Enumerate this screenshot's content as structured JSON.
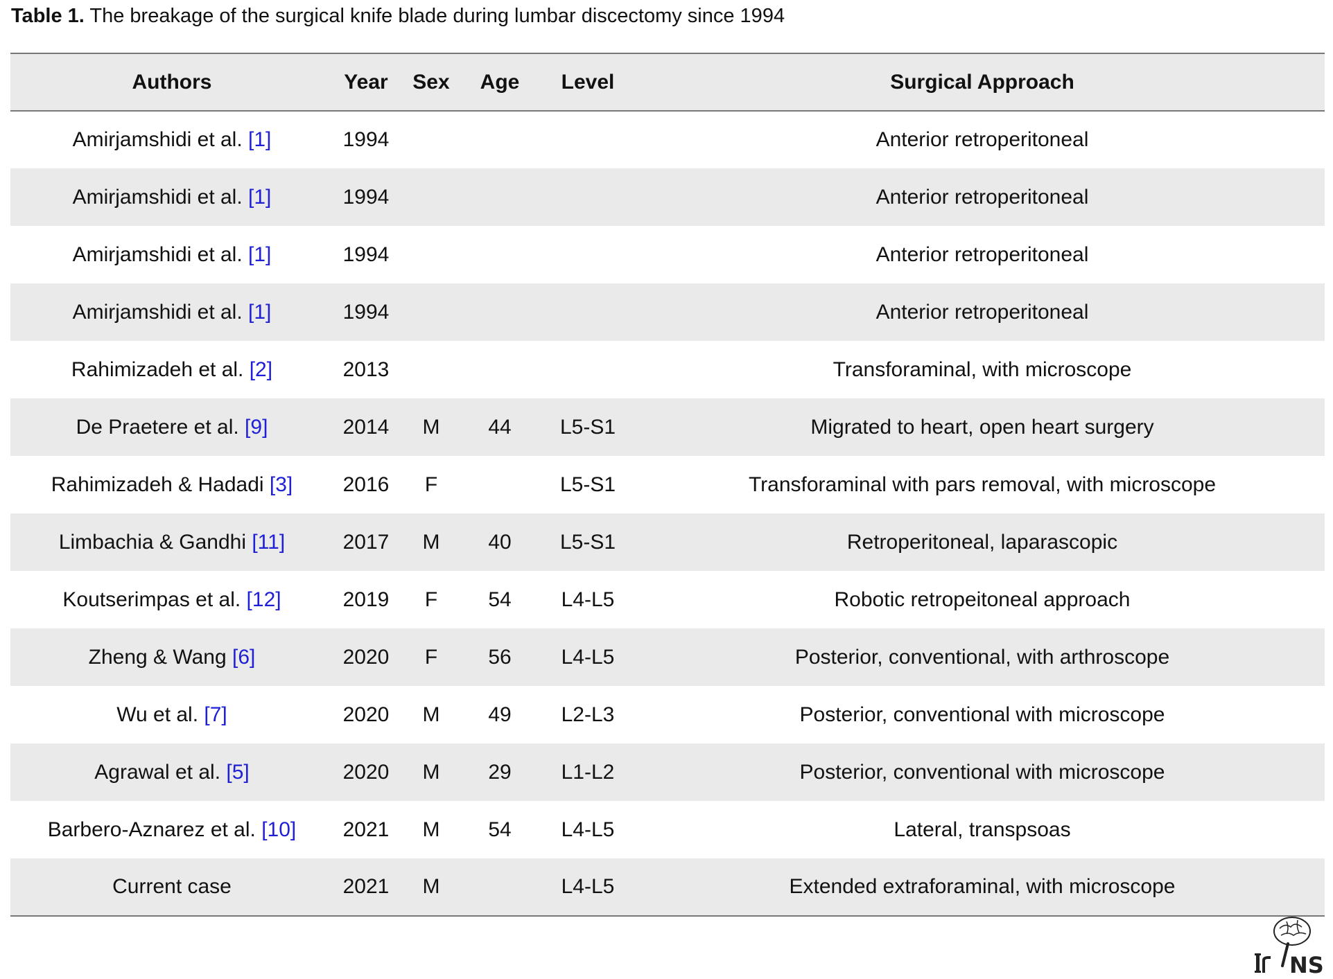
{
  "caption": {
    "label": "Table 1.",
    "text": "The breakage of the surgical knife blade during lumbar discectomy since 1994"
  },
  "table": {
    "headers": [
      "Authors",
      "Year",
      "Sex",
      "Age",
      "Level",
      "Surgical Approach"
    ],
    "rows": [
      {
        "author": "Amirjamshidi et al.",
        "ref": "[1]",
        "year": "1994",
        "sex": "",
        "age": "",
        "level": "",
        "approach": "Anterior retroperitoneal"
      },
      {
        "author": "Amirjamshidi et al.",
        "ref": "[1]",
        "year": "1994",
        "sex": "",
        "age": "",
        "level": "",
        "approach": "Anterior retroperitoneal"
      },
      {
        "author": "Amirjamshidi et al.",
        "ref": "[1]",
        "year": "1994",
        "sex": "",
        "age": "",
        "level": "",
        "approach": "Anterior retroperitoneal"
      },
      {
        "author": "Amirjamshidi et al.",
        "ref": "[1]",
        "year": "1994",
        "sex": "",
        "age": "",
        "level": "",
        "approach": "Anterior retroperitoneal"
      },
      {
        "author": "Rahimizadeh et al.",
        "ref": "[2]",
        "year": "2013",
        "sex": "",
        "age": "",
        "level": "",
        "approach": "Transforaminal, with microscope"
      },
      {
        "author": "De Praetere et al.",
        "ref": "[9]",
        "year": "2014",
        "sex": "M",
        "age": "44",
        "level": "L5-S1",
        "approach": "Migrated to heart, open heart surgery"
      },
      {
        "author": "Rahimizadeh & Hadadi",
        "ref": "[3]",
        "year": "2016",
        "sex": "F",
        "age": "",
        "level": "L5-S1",
        "approach": "Transforaminal with pars removal, with microscope"
      },
      {
        "author": "Limbachia & Gandhi",
        "ref": "[11]",
        "year": "2017",
        "sex": "M",
        "age": "40",
        "level": "L5-S1",
        "approach": "Retroperitoneal, laparascopic"
      },
      {
        "author": "Koutserimpas et al.",
        "ref": "[12]",
        "year": "2019",
        "sex": "F",
        "age": "54",
        "level": "L4-L5",
        "approach": "Robotic retropeitoneal approach"
      },
      {
        "author": "Zheng & Wang",
        "ref": "[6]",
        "year": "2020",
        "sex": "F",
        "age": "56",
        "level": "L4-L5",
        "approach": "Posterior, conventional, with arthroscope"
      },
      {
        "author": "Wu et al.",
        "ref": "[7]",
        "year": "2020",
        "sex": "M",
        "age": "49",
        "level": "L2-L3",
        "approach": "Posterior, conventional with microscope"
      },
      {
        "author": "Agrawal et al.",
        "ref": "[5]",
        "year": "2020",
        "sex": "M",
        "age": "29",
        "level": "L1-L2",
        "approach": "Posterior, conventional with microscope"
      },
      {
        "author": "Barbero-Aznarez et al.",
        "ref": "[10]",
        "year": "2021",
        "sex": "M",
        "age": "54",
        "level": "L4-L5",
        "approach": "Lateral, transpsoas"
      },
      {
        "author": "Current case",
        "ref": "",
        "year": "2021",
        "sex": "M",
        "age": "",
        "level": "L4-L5",
        "approach": "Extended extraforaminal, with microscope"
      }
    ]
  },
  "logo": {
    "text": "IrNS",
    "icon": "brain-spine-logo-icon"
  },
  "colors": {
    "reference_link": "#1f1fd6",
    "stripe": "#eaeaea",
    "rule": "#777777"
  }
}
